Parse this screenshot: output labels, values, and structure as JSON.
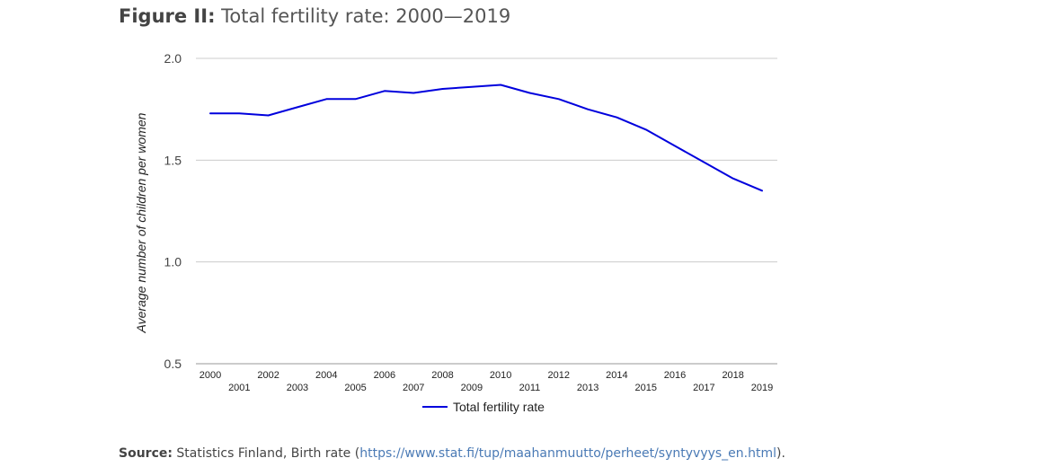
{
  "figure": {
    "label": "Figure II:",
    "title": "Total fertility rate: 2000—2019"
  },
  "source": {
    "label": "Source:",
    "text": "Statistics Finland, Birth rate (",
    "link_text": "https://www.stat.fi/tup/maahanmuutto/perheet/syntyvyys_en.html",
    "suffix": ")."
  },
  "colors": {
    "series": "#0000dd",
    "grid": "#cccccc",
    "axis_text": "#444444",
    "link": "#4a7ab5"
  },
  "chart_data": {
    "type": "line",
    "title": "Total fertility rate: 2000—2019",
    "xlabel": "",
    "ylabel": "Average number of children per women",
    "ylim": [
      0.5,
      2.0
    ],
    "yticks": [
      "0.5",
      "1.0",
      "1.5",
      "2.0"
    ],
    "grid": true,
    "legend_position": "bottom",
    "x": [
      "2000",
      "2001",
      "2002",
      "2003",
      "2004",
      "2005",
      "2006",
      "2007",
      "2008",
      "2009",
      "2010",
      "2011",
      "2012",
      "2013",
      "2014",
      "2015",
      "2016",
      "2017",
      "2018",
      "2019"
    ],
    "series": [
      {
        "name": "Total fertility rate",
        "values": [
          1.73,
          1.73,
          1.72,
          1.76,
          1.8,
          1.8,
          1.84,
          1.83,
          1.85,
          1.86,
          1.87,
          1.83,
          1.8,
          1.75,
          1.71,
          1.65,
          1.57,
          1.49,
          1.41,
          1.35
        ]
      }
    ]
  }
}
